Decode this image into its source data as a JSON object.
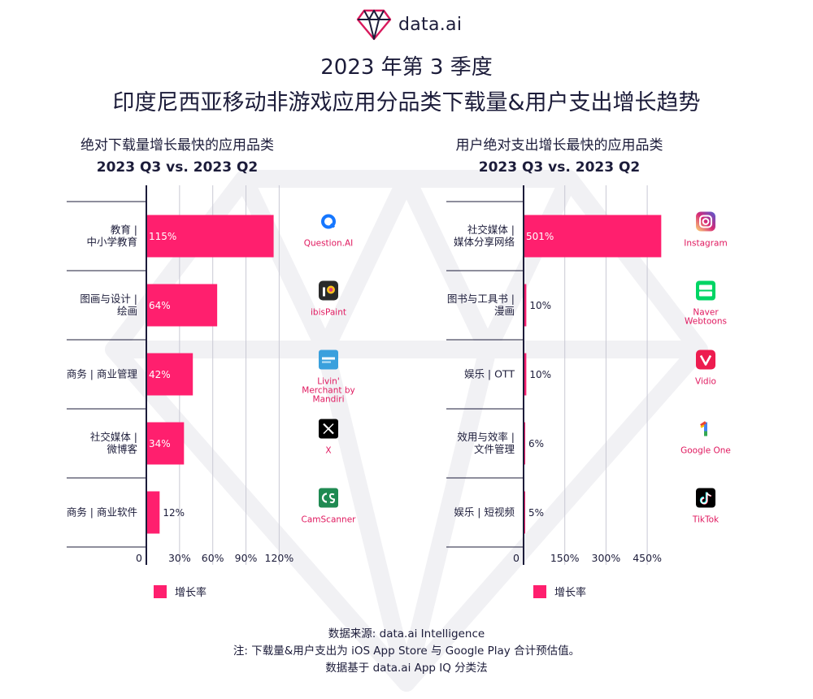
{
  "brand": {
    "logo_text": "data.ai"
  },
  "title": {
    "line1": "2023 年第 3 季度",
    "line2": "印度尼西亚移动非游戏应用分品类下载量&用户支出增长趋势"
  },
  "colors": {
    "bar": "#ff1f6e",
    "axis": "#1c1c3a",
    "grid": "#c9c9d4",
    "app_label": "#e0195f"
  },
  "chart_data": [
    {
      "type": "bar",
      "orientation": "horizontal",
      "title": "绝对下载量增长最快的应用品类",
      "subtitle": "2023 Q3 vs. 2023 Q2",
      "legend": "增长率",
      "xlim": [
        0,
        130
      ],
      "xticks": [
        "0",
        "30%",
        "60%",
        "90%",
        "120%"
      ],
      "tick_values": [
        0,
        30,
        60,
        90,
        120
      ],
      "categories": [
        [
          "教育 |",
          "中小学教育"
        ],
        [
          "图画与设计 |",
          "绘画"
        ],
        [
          "商务 | 商业管理"
        ],
        [
          "社交媒体 |",
          "微博客"
        ],
        [
          "商务 | 商业软件"
        ]
      ],
      "values": [
        115,
        64,
        42,
        34,
        12
      ],
      "value_labels": [
        "115%",
        "64%",
        "42%",
        "34%",
        "12%"
      ],
      "apps": [
        {
          "name": [
            "Question.AI"
          ],
          "icon": "question-ai-icon"
        },
        {
          "name": [
            "ibisPaint"
          ],
          "icon": "ibispaint-icon"
        },
        {
          "name": [
            "Livin'",
            "Merchant by",
            "Mandiri"
          ],
          "icon": "livin-merchant-icon"
        },
        {
          "name": [
            "X"
          ],
          "icon": "x-icon"
        },
        {
          "name": [
            "CamScanner"
          ],
          "icon": "camscanner-icon"
        }
      ]
    },
    {
      "type": "bar",
      "orientation": "horizontal",
      "title": "用户绝对支出增长最快的应用品类",
      "subtitle": "2023 Q3 vs. 2023 Q2",
      "legend": "增长率",
      "xlim": [
        0,
        500
      ],
      "xticks": [
        "0",
        "150%",
        "300%",
        "450%"
      ],
      "tick_values": [
        0,
        150,
        300,
        450
      ],
      "categories": [
        [
          "社交媒体 |",
          "媒体分享网络"
        ],
        [
          "图书与工具书 |",
          "漫画"
        ],
        [
          "娱乐 | OTT"
        ],
        [
          "效用与效率 |",
          "文件管理"
        ],
        [
          "娱乐 | 短视频"
        ]
      ],
      "values": [
        501,
        10,
        10,
        6,
        5
      ],
      "value_labels": [
        "501%",
        "10%",
        "10%",
        "6%",
        "5%"
      ],
      "apps": [
        {
          "name": [
            "Instagram"
          ],
          "icon": "instagram-icon"
        },
        {
          "name": [
            "Naver",
            "Webtoons"
          ],
          "icon": "naver-webtoons-icon"
        },
        {
          "name": [
            "Vidio"
          ],
          "icon": "vidio-icon"
        },
        {
          "name": [
            "Google One"
          ],
          "icon": "google-one-icon"
        },
        {
          "name": [
            "TikTok"
          ],
          "icon": "tiktok-icon"
        }
      ]
    }
  ],
  "footer": {
    "line1": "数据来源: data.ai Intelligence",
    "line2": "注: 下载量&用户支出为 iOS App Store 与 Google Play 合计预估值。",
    "line3": "数据基于 data.ai App IQ 分类法"
  }
}
